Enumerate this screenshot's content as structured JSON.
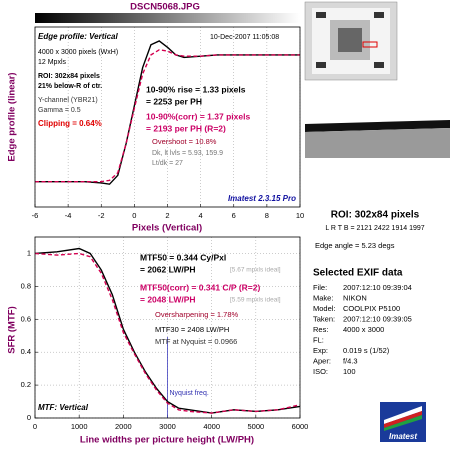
{
  "header": {
    "filename": "DSCN5068.JPG"
  },
  "chart_data": [
    {
      "type": "line",
      "title": "Edge profile: Vertical",
      "date": "10-Dec-2007 11:05:08",
      "xlabel": "Pixels (Vertical)",
      "ylabel": "Edge profile (linear)",
      "xlim": [
        -6,
        10
      ],
      "xticks": [
        -6,
        -4,
        -2,
        0,
        2,
        4,
        6,
        8,
        10
      ],
      "ylim": [
        -0.2,
        1.22
      ],
      "grid": true,
      "x": [
        -6,
        -5,
        -4,
        -3,
        -2,
        -1.5,
        -1,
        -0.5,
        0,
        0.5,
        1,
        1.5,
        2,
        2.5,
        3,
        4,
        5,
        6,
        7,
        8,
        9,
        10
      ],
      "series": [
        {
          "color": "#000000",
          "dashed": false,
          "values": [
            0,
            0,
            0,
            0,
            -0.01,
            -0.02,
            0.05,
            0.3,
            0.6,
            0.9,
            1.08,
            1.11,
            1.06,
            1.0,
            0.98,
            0.99,
            1.0,
            1.0,
            1.0,
            1.0,
            1.0,
            1.0
          ]
        },
        {
          "color": "#d4004f",
          "dashed": true,
          "values": [
            0,
            0,
            0,
            0,
            0,
            0.01,
            0.07,
            0.3,
            0.58,
            0.85,
            1.0,
            1.04,
            1.03,
            1.0,
            0.99,
            0.99,
            1.0,
            1.0,
            1.0,
            1.0,
            1.0,
            1.0
          ]
        }
      ],
      "info": [
        "4000 x 3000 pixels (WxH)",
        "12 Mpxls",
        "ROI: 302x84 pixels",
        "21% below-R of ctr.",
        "Y-channel (YBR21)",
        "Gamma = 0.5",
        "Clipping = 0.64%"
      ],
      "results": [
        "10-90% rise = 1.33 pixels",
        "= 2253 per PH",
        "10-90%(corr) = 1.37 pixels",
        "= 2193 per PH (R=2)",
        "Overshoot = 10.8%",
        "Dk, lt lvls = 5.93, 159.9",
        "Lt/dk = 27"
      ],
      "version": "Imatest 2.3.15 Pro"
    },
    {
      "type": "line",
      "title": "MTF: Vertical",
      "xlabel": "Line widths per picture height (LW/PH)",
      "ylabel": "SFR (MTF)",
      "xlim": [
        0,
        6000
      ],
      "xticks": [
        0,
        1000,
        2000,
        3000,
        4000,
        5000,
        6000
      ],
      "ylim": [
        0,
        1.1
      ],
      "yticks": [
        0,
        0.2,
        0.4,
        0.6,
        0.8,
        1
      ],
      "grid": true,
      "x": [
        0,
        500,
        1000,
        1250,
        1500,
        1750,
        2000,
        2250,
        2500,
        2750,
        3000,
        3250,
        3500,
        4000,
        4500,
        5000,
        5500,
        6000
      ],
      "series": [
        {
          "color": "#000000",
          "dashed": false,
          "values": [
            1.0,
            1.01,
            1.03,
            1.0,
            0.9,
            0.75,
            0.54,
            0.4,
            0.28,
            0.18,
            0.1,
            0.06,
            0.05,
            0.03,
            0.05,
            0.04,
            0.05,
            0.07
          ]
        },
        {
          "color": "#d4004f",
          "dashed": true,
          "values": [
            1.0,
            0.99,
            1.0,
            0.98,
            0.88,
            0.72,
            0.52,
            0.39,
            0.27,
            0.17,
            0.09,
            0.05,
            0.04,
            0.03,
            0.05,
            0.04,
            0.05,
            0.08
          ]
        }
      ],
      "nyquist": 3000,
      "nyquist_label": "Nyquist freq.",
      "results": [
        "MTF50 = 0.344 Cy/Pxl",
        "= 2062 LW/PH",
        "[5.67 mpxls ideal]",
        "MTF50(corr) = 0.341 C/P (R=2)",
        "= 2048 LW/PH",
        "[5.59 mpxls ideal]",
        "Oversharpening = 1.78%",
        "MTF30 = 2408 LW/PH",
        "MTF at Nyquist = 0.0966"
      ]
    }
  ],
  "roi": {
    "size": "ROI: 302x84 pixels",
    "bounds": "L R T B = 2121 2422 1914 1997",
    "edge_angle": "Edge angle = 5.23 degs"
  },
  "exif": {
    "heading": "Selected EXIF data",
    "rows": [
      [
        "File:",
        "2007:12:10 09:39:04"
      ],
      [
        "Make:",
        "NIKON"
      ],
      [
        "Model:",
        "COOLPIX P5100"
      ],
      [
        "Taken:",
        "2007:12:10 09:39:05"
      ],
      [
        "Res:",
        "4000 x 3000"
      ],
      [
        "FL:"
      ],
      [
        "Exp:",
        "0.019 s (1/52)"
      ],
      [
        "Aper:",
        "f/4.3"
      ],
      [
        "ISO:",
        "100"
      ]
    ]
  },
  "logo": "Imatest"
}
